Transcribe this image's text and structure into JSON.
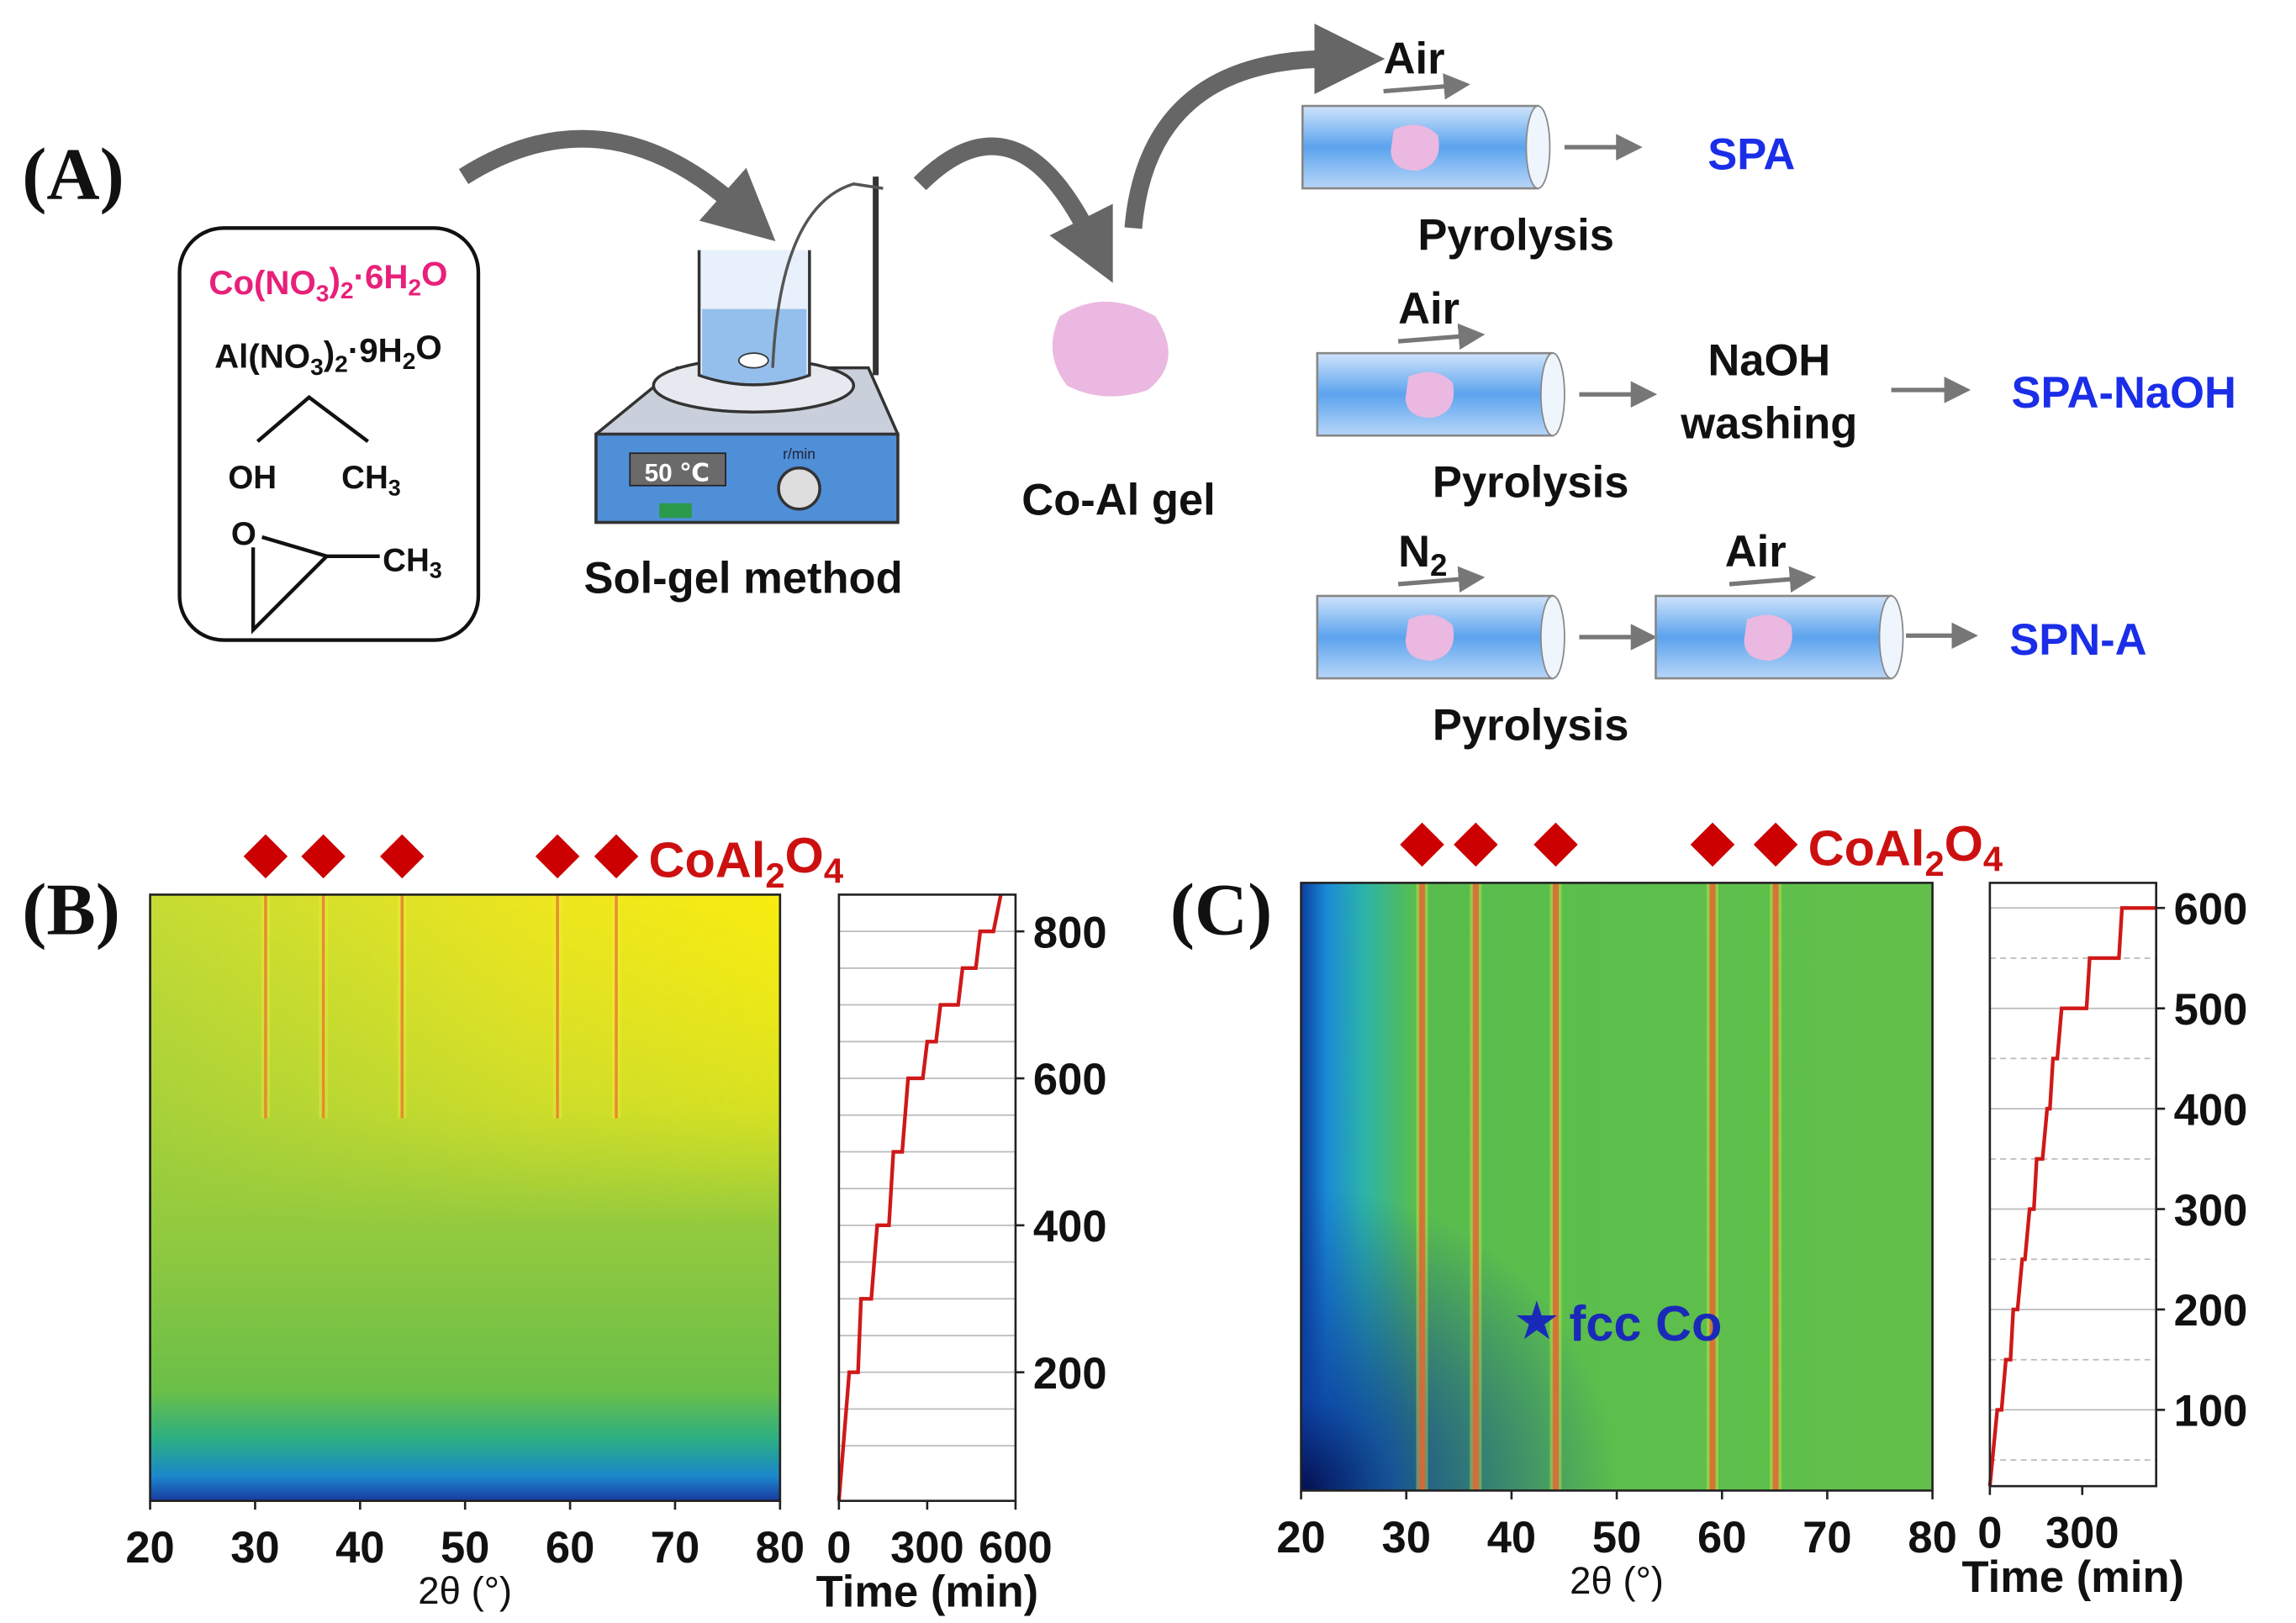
{
  "panel_a": {
    "label": "(A)",
    "reagents": [
      [
        "Co(NO",
        "3",
        ")",
        "2",
        "·6H",
        "2",
        "O"
      ],
      [
        "Al(NO",
        "3",
        ")",
        "2",
        "·9H",
        "2",
        "O"
      ]
    ],
    "ethanol": {
      "oh": "OH",
      "ch3": [
        "CH",
        "3"
      ]
    },
    "epoxide": {
      "o": "O",
      "ch3": [
        "CH",
        "3"
      ]
    },
    "display": "50 ℃",
    "speed": "r/min",
    "method": "Sol-gel method",
    "gel": "Co-Al gel",
    "routes": [
      {
        "gas": [
          "Air"
        ],
        "step": "Pyrolysis",
        "product": "SPA"
      },
      {
        "gas": [
          "Air"
        ],
        "step": "Pyrolysis",
        "wash": [
          "NaOH",
          "washing"
        ],
        "product": "SPA-NaOH"
      },
      {
        "gas": [
          "N",
          "2"
        ],
        "gas2": [
          "Air"
        ],
        "step": "Pyrolysis",
        "product": "SPN-A"
      }
    ]
  },
  "panel_b": {
    "label": "(B)",
    "phase": [
      "CoAl",
      "2",
      "O",
      "4"
    ],
    "heatmap": {
      "xlim": [
        20,
        80
      ],
      "xticks": [
        20,
        30,
        40,
        50,
        60,
        70,
        80
      ],
      "xlabel": "2θ (°)",
      "peaks": [
        31,
        36.5,
        44,
        58.8,
        64.4
      ],
      "peak_color": "#e0402a"
    },
    "profile": {
      "type": "line",
      "color": "#d01818",
      "xlim": [
        0,
        600
      ],
      "xticks": [
        0,
        300,
        600
      ],
      "ylim": [
        25,
        850
      ],
      "yticks": [
        200,
        400,
        600,
        800
      ],
      "ygrid": [
        100,
        150,
        200,
        250,
        300,
        350,
        400,
        450,
        500,
        550,
        600,
        650,
        700,
        750,
        800
      ],
      "xlabel": "Time (min)",
      "x": [
        0,
        35,
        65,
        75,
        110,
        130,
        170,
        185,
        215,
        235,
        285,
        300,
        330,
        345,
        405,
        420,
        465,
        480,
        525,
        550
      ],
      "y": [
        25,
        200,
        200,
        300,
        300,
        400,
        400,
        500,
        500,
        600,
        600,
        650,
        650,
        700,
        700,
        750,
        750,
        800,
        800,
        850
      ]
    }
  },
  "panel_c": {
    "label": "(C)",
    "phase": [
      "CoAl",
      "2",
      "O",
      "4"
    ],
    "star": {
      "label": "fcc Co",
      "x": 42.4
    },
    "heatmap": {
      "xlim": [
        20,
        80
      ],
      "xticks": [
        20,
        30,
        40,
        50,
        60,
        70,
        80
      ],
      "xlabel": "2θ (°)",
      "peaks": [
        31.5,
        36.6,
        44.2,
        59.1,
        65.1
      ],
      "peak_color": "#d81830"
    },
    "profile": {
      "type": "line",
      "color": "#d01818",
      "xlim": [
        0,
        540
      ],
      "xticks": [
        0,
        300
      ],
      "ylim": [
        24,
        625
      ],
      "yticks": [
        100,
        200,
        300,
        400,
        500,
        600
      ],
      "ygrid": [
        100,
        200,
        300,
        400,
        500,
        600
      ],
      "ygrid_dashed": [
        50,
        150,
        250,
        350,
        450,
        550
      ],
      "xlabel": "Time (min)",
      "x": [
        0,
        24,
        38,
        52,
        67,
        76,
        90,
        105,
        114,
        129,
        143,
        152,
        171,
        186,
        195,
        205,
        219,
        233,
        314,
        324,
        419,
        429,
        540
      ],
      "y": [
        24,
        100,
        100,
        150,
        150,
        200,
        200,
        250,
        250,
        300,
        300,
        350,
        350,
        400,
        400,
        450,
        450,
        500,
        500,
        550,
        550,
        600,
        600
      ]
    }
  }
}
